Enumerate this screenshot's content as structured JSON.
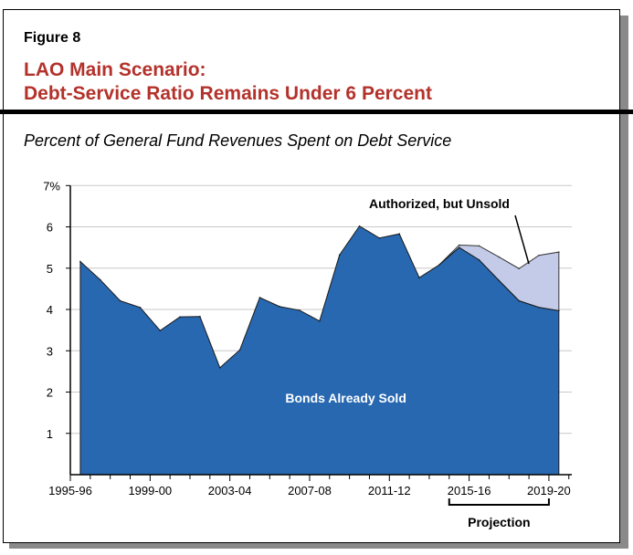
{
  "figure_label": "Figure 8",
  "title_line1": "LAO Main Scenario:",
  "title_line2": "Debt-Service Ratio Remains Under 6 Percent",
  "chart_data": {
    "type": "area",
    "title": "LAO Main Scenario: Debt-Service Ratio Remains Under 6 Percent",
    "subtitle": "Percent of General Fund Revenues Spent on Debt Service",
    "xlabel": "",
    "ylabel": "",
    "stacked": true,
    "x": [
      "1995-96",
      "1996-97",
      "1997-98",
      "1998-99",
      "1999-00",
      "2000-01",
      "2001-02",
      "2002-03",
      "2003-04",
      "2004-05",
      "2005-06",
      "2006-07",
      "2007-08",
      "2008-09",
      "2009-10",
      "2010-11",
      "2011-12",
      "2012-13",
      "2013-14",
      "2014-15",
      "2015-16",
      "2016-17",
      "2017-18",
      "2018-19",
      "2019-20"
    ],
    "x_tick_labels": [
      "1995-96",
      "1999-00",
      "2003-04",
      "2007-08",
      "2011-12",
      "2015-16",
      "2019-20"
    ],
    "y_tick_labels": [
      "1",
      "2",
      "3",
      "4",
      "5",
      "6",
      "7%"
    ],
    "ylim": [
      0,
      7
    ],
    "grid": "horizontal",
    "series": [
      {
        "name": "Bonds Already Sold",
        "color": "#2868b0",
        "values": [
          5.16,
          4.72,
          4.21,
          4.05,
          3.49,
          3.82,
          3.83,
          2.59,
          3.02,
          4.29,
          4.07,
          3.98,
          3.72,
          5.32,
          6.02,
          5.73,
          5.83,
          4.77,
          5.08,
          5.5,
          5.2,
          4.7,
          4.21,
          4.05,
          3.97
        ]
      },
      {
        "name": "Authorized, but Unsold",
        "color": "#c3cbe8",
        "values": [
          null,
          null,
          null,
          null,
          null,
          null,
          null,
          null,
          null,
          null,
          null,
          null,
          null,
          null,
          null,
          null,
          null,
          null,
          null,
          0.06,
          0.34,
          0.57,
          0.78,
          1.26,
          1.42
        ]
      }
    ],
    "annotations": {
      "sold_label": "Bonds Already Sold",
      "unsold_label": "Authorized, but Unsold",
      "projection_label": "Projection",
      "projection_range": [
        "2015-16",
        "2019-20"
      ]
    }
  }
}
